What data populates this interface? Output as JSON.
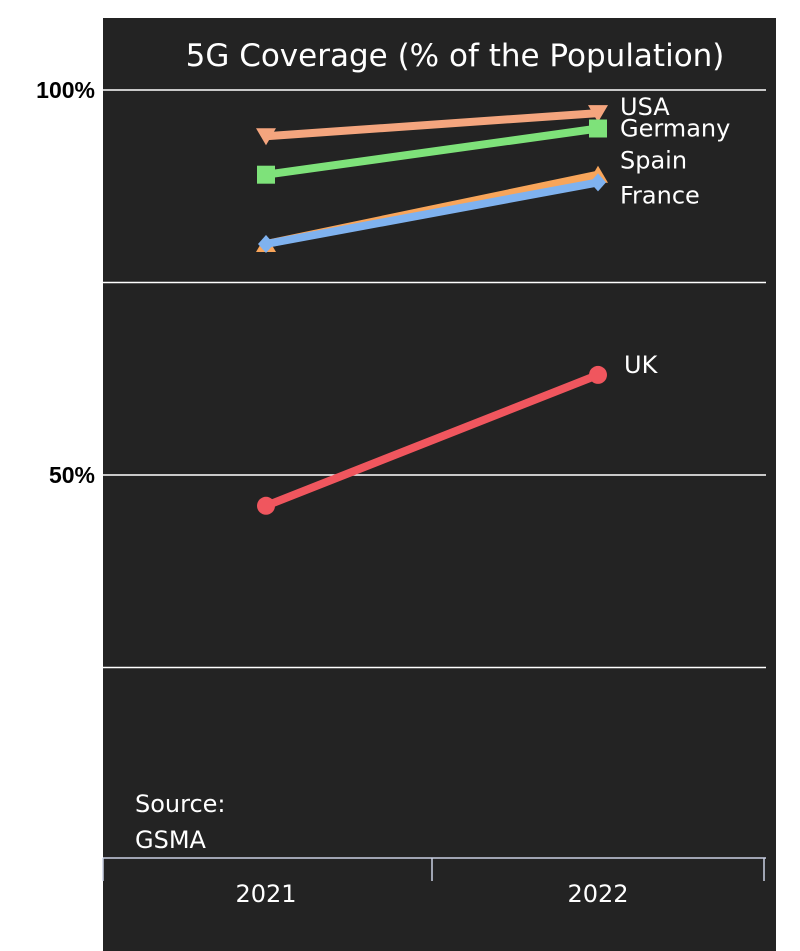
{
  "chart_data": {
    "type": "line",
    "title": "5G Coverage (% of the Population)",
    "categories": [
      "2021",
      "2022"
    ],
    "x": [
      "2021",
      "2022"
    ],
    "ylim": [
      0,
      110
    ],
    "ytick_labels": [
      {
        "value": 100,
        "label": "100%"
      },
      {
        "value": 50,
        "label": "50%"
      }
    ],
    "gridlines": [
      25,
      50,
      75,
      100
    ],
    "series": [
      {
        "name": "USA",
        "values": [
          94,
          97
        ],
        "color": "#f4a57e",
        "marker": "triangle-down"
      },
      {
        "name": "Germany",
        "values": [
          89,
          95
        ],
        "color": "#7ee27a",
        "marker": "square"
      },
      {
        "name": "Spain",
        "values": [
          80,
          89
        ],
        "color": "#f8a55a",
        "marker": "triangle-up"
      },
      {
        "name": "France",
        "values": [
          80,
          88
        ],
        "color": "#7fb2ef",
        "marker": "diamond"
      },
      {
        "name": "UK",
        "values": [
          46,
          63
        ],
        "color": "#f0565e",
        "marker": "circle"
      }
    ],
    "source": [
      "Source:",
      "GSMA"
    ],
    "background": "#232323",
    "grid": true,
    "legend": "end-of-line labels"
  }
}
